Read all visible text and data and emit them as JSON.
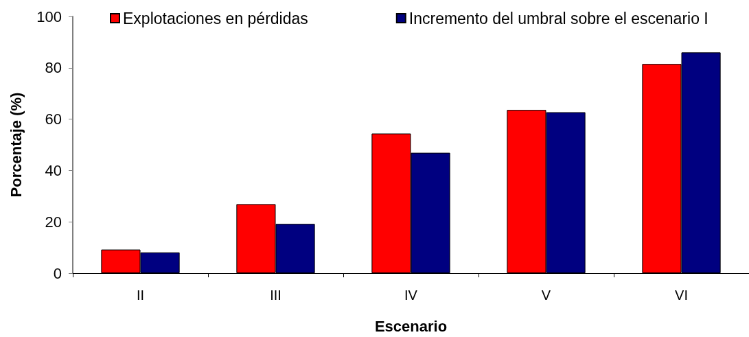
{
  "chart_data": {
    "type": "bar",
    "xlabel": "Escenario",
    "ylabel": "Porcentaje (%)",
    "categories": [
      "II",
      "III",
      "IV",
      "V",
      "VI"
    ],
    "series": [
      {
        "name": "Explotaciones en pérdidas",
        "color": "#ff0000",
        "values": [
          9.2,
          26.9,
          54.4,
          63.6,
          81.5
        ]
      },
      {
        "name": "Incremento del umbral sobre el escenario I",
        "color": "#000080",
        "values": [
          8.1,
          19.2,
          46.9,
          62.7,
          86.0
        ]
      }
    ],
    "ylim": [
      0,
      100
    ],
    "yticks": [
      0,
      20,
      40,
      60,
      80,
      100
    ],
    "grid": false,
    "legend": "top"
  }
}
